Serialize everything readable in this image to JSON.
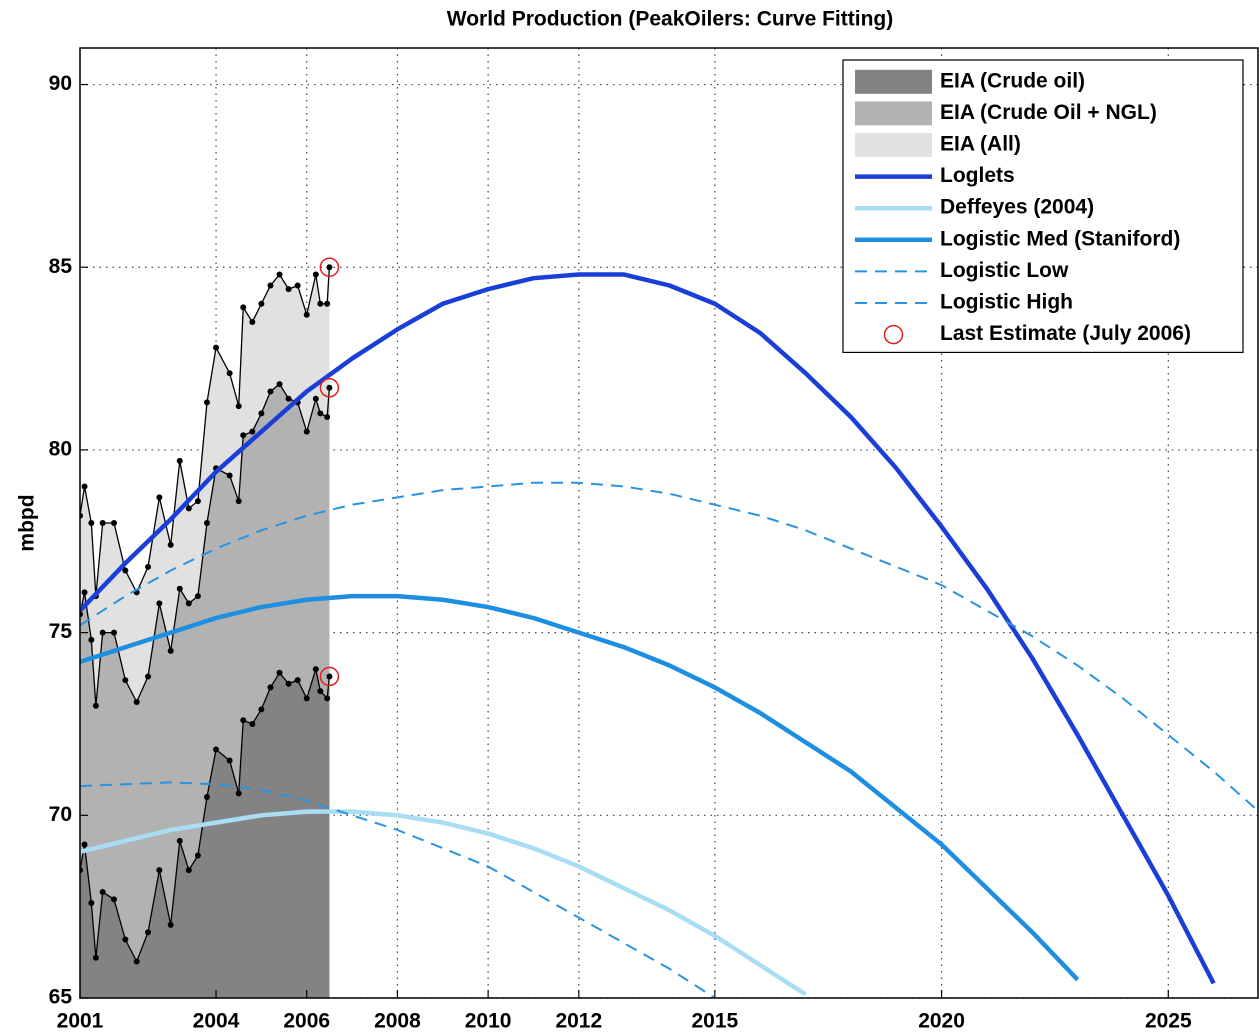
{
  "chart_data": {
    "type": "line",
    "title": "World Production (PeakOilers: Curve Fitting)",
    "ylabel": "mbpd",
    "xlim": [
      2001,
      2027
    ],
    "ylim": [
      65,
      91
    ],
    "xticks": [
      2001,
      2004,
      2006,
      2008,
      2010,
      2012,
      2015,
      2020,
      2025
    ],
    "yticks": [
      65,
      70,
      75,
      80,
      85,
      90
    ],
    "grid": true,
    "legend": "upper right",
    "series": [
      {
        "name": "EIA (All)",
        "style": "area",
        "color": "#e1e1e1",
        "edge_color": "#000000",
        "x": [
          2001.0,
          2001.1,
          2001.25,
          2001.35,
          2001.5,
          2001.75,
          2002.0,
          2002.25,
          2002.5,
          2002.75,
          2003.0,
          2003.2,
          2003.4,
          2003.6,
          2003.8,
          2004.0,
          2004.3,
          2004.5,
          2004.6,
          2004.8,
          2005.0,
          2005.2,
          2005.4,
          2005.6,
          2005.8,
          2006.0,
          2006.2,
          2006.3,
          2006.45,
          2006.5
        ],
        "values": [
          78.2,
          79.0,
          78.0,
          76.0,
          78.0,
          78.0,
          76.7,
          76.1,
          76.8,
          78.7,
          77.4,
          79.7,
          78.4,
          78.6,
          81.3,
          82.8,
          82.1,
          81.2,
          83.9,
          83.5,
          84.0,
          84.5,
          84.8,
          84.4,
          84.5,
          83.7,
          84.8,
          84.0,
          84.0,
          85.0
        ]
      },
      {
        "name": "EIA (Crude Oil + NGL)",
        "style": "area",
        "color": "#b2b2b2",
        "edge_color": "#000000",
        "x": [
          2001.0,
          2001.1,
          2001.25,
          2001.35,
          2001.5,
          2001.75,
          2002.0,
          2002.25,
          2002.5,
          2002.75,
          2003.0,
          2003.2,
          2003.4,
          2003.6,
          2003.8,
          2004.0,
          2004.3,
          2004.5,
          2004.6,
          2004.8,
          2005.0,
          2005.2,
          2005.4,
          2005.6,
          2005.8,
          2006.0,
          2006.2,
          2006.3,
          2006.45,
          2006.5
        ],
        "values": [
          75.5,
          76.1,
          74.8,
          73.0,
          75.0,
          75.0,
          73.7,
          73.1,
          73.8,
          75.8,
          74.5,
          76.2,
          75.8,
          76.0,
          78.0,
          79.5,
          79.3,
          78.6,
          80.4,
          80.5,
          81.0,
          81.6,
          81.8,
          81.4,
          81.3,
          80.5,
          81.4,
          81.0,
          80.9,
          81.7
        ]
      },
      {
        "name": "EIA (Crude oil)",
        "style": "area",
        "color": "#838383",
        "edge_color": "#000000",
        "x": [
          2001.0,
          2001.1,
          2001.25,
          2001.35,
          2001.5,
          2001.75,
          2002.0,
          2002.25,
          2002.5,
          2002.75,
          2003.0,
          2003.2,
          2003.4,
          2003.6,
          2003.8,
          2004.0,
          2004.3,
          2004.5,
          2004.6,
          2004.8,
          2005.0,
          2005.2,
          2005.4,
          2005.6,
          2005.8,
          2006.0,
          2006.2,
          2006.3,
          2006.45,
          2006.5
        ],
        "values": [
          68.5,
          69.2,
          67.6,
          66.1,
          67.9,
          67.7,
          66.6,
          66.0,
          66.8,
          68.5,
          67.0,
          69.3,
          68.5,
          68.9,
          70.5,
          71.8,
          71.5,
          70.6,
          72.6,
          72.5,
          72.9,
          73.5,
          73.9,
          73.6,
          73.7,
          73.2,
          74.0,
          73.4,
          73.2,
          73.8
        ]
      },
      {
        "name": "Loglets",
        "style": "solid",
        "color": "#1a3ed8",
        "x": [
          2001,
          2002,
          2003,
          2004,
          2005,
          2006,
          2007,
          2008,
          2009,
          2010,
          2011,
          2012,
          2013,
          2014,
          2015,
          2016,
          2017,
          2018,
          2019,
          2020,
          2021,
          2022,
          2023,
          2024,
          2025,
          2026
        ],
        "values": [
          75.6,
          76.9,
          78.1,
          79.4,
          80.5,
          81.6,
          82.5,
          83.3,
          84.0,
          84.4,
          84.7,
          84.8,
          84.8,
          84.5,
          84.0,
          83.2,
          82.1,
          80.9,
          79.5,
          77.9,
          76.2,
          74.3,
          72.2,
          70.0,
          67.8,
          65.4
        ]
      },
      {
        "name": "Deffeyes (2004)",
        "style": "solid",
        "color": "#a8ddf4",
        "x": [
          2001,
          2002,
          2003,
          2004,
          2005,
          2006,
          2007,
          2008,
          2009,
          2010,
          2011,
          2012,
          2013,
          2014,
          2015,
          2016,
          2017
        ],
        "values": [
          69.0,
          69.3,
          69.6,
          69.8,
          70.0,
          70.1,
          70.1,
          70.0,
          69.8,
          69.5,
          69.1,
          68.6,
          68.0,
          67.4,
          66.7,
          65.9,
          65.1
        ]
      },
      {
        "name": "Logistic Med (Staniford)",
        "style": "solid",
        "color": "#1e8fe0",
        "x": [
          2001,
          2002,
          2003,
          2004,
          2005,
          2006,
          2007,
          2008,
          2009,
          2010,
          2011,
          2012,
          2013,
          2014,
          2015,
          2016,
          2017,
          2018,
          2019,
          2020,
          2021,
          2022,
          2023
        ],
        "values": [
          74.2,
          74.6,
          75.0,
          75.4,
          75.7,
          75.9,
          76.0,
          76.0,
          75.9,
          75.7,
          75.4,
          75.0,
          74.6,
          74.1,
          73.5,
          72.8,
          72.0,
          71.2,
          70.2,
          69.2,
          68.0,
          66.8,
          65.5
        ]
      },
      {
        "name": "Logistic Low",
        "style": "dashed",
        "color": "#2a93e0",
        "x": [
          2001,
          2002,
          2003,
          2004,
          2005,
          2006,
          2007,
          2008,
          2009,
          2010,
          2011,
          2012,
          2013,
          2014,
          2015,
          2016,
          2017,
          2018,
          2019,
          2020,
          2021,
          2022,
          2023,
          2024,
          2025,
          2026,
          2027
        ],
        "values": [
          75.2,
          76.0,
          76.7,
          77.3,
          77.8,
          78.2,
          78.5,
          78.7,
          78.9,
          79.0,
          79.1,
          79.1,
          79.0,
          78.8,
          78.5,
          78.2,
          77.8,
          77.3,
          76.8,
          76.3,
          75.6,
          74.9,
          74.1,
          73.2,
          72.2,
          71.2,
          70.1
        ]
      },
      {
        "name": "Logistic High",
        "style": "dashed",
        "color": "#2a93e0",
        "x": [
          2001,
          2002,
          2003,
          2004,
          2005,
          2006,
          2007,
          2008,
          2009,
          2010,
          2011,
          2012,
          2013,
          2014,
          2015
        ],
        "values": [
          70.8,
          70.85,
          70.9,
          70.85,
          70.7,
          70.4,
          70.0,
          69.6,
          69.1,
          68.6,
          67.9,
          67.2,
          66.5,
          65.8,
          65.0
        ]
      },
      {
        "name": "Last Estimate (July 2006)",
        "style": "marker",
        "color": "#e02020",
        "x": [
          2006.5,
          2006.5,
          2006.5
        ],
        "values": [
          73.8,
          81.7,
          85.0
        ]
      }
    ]
  }
}
